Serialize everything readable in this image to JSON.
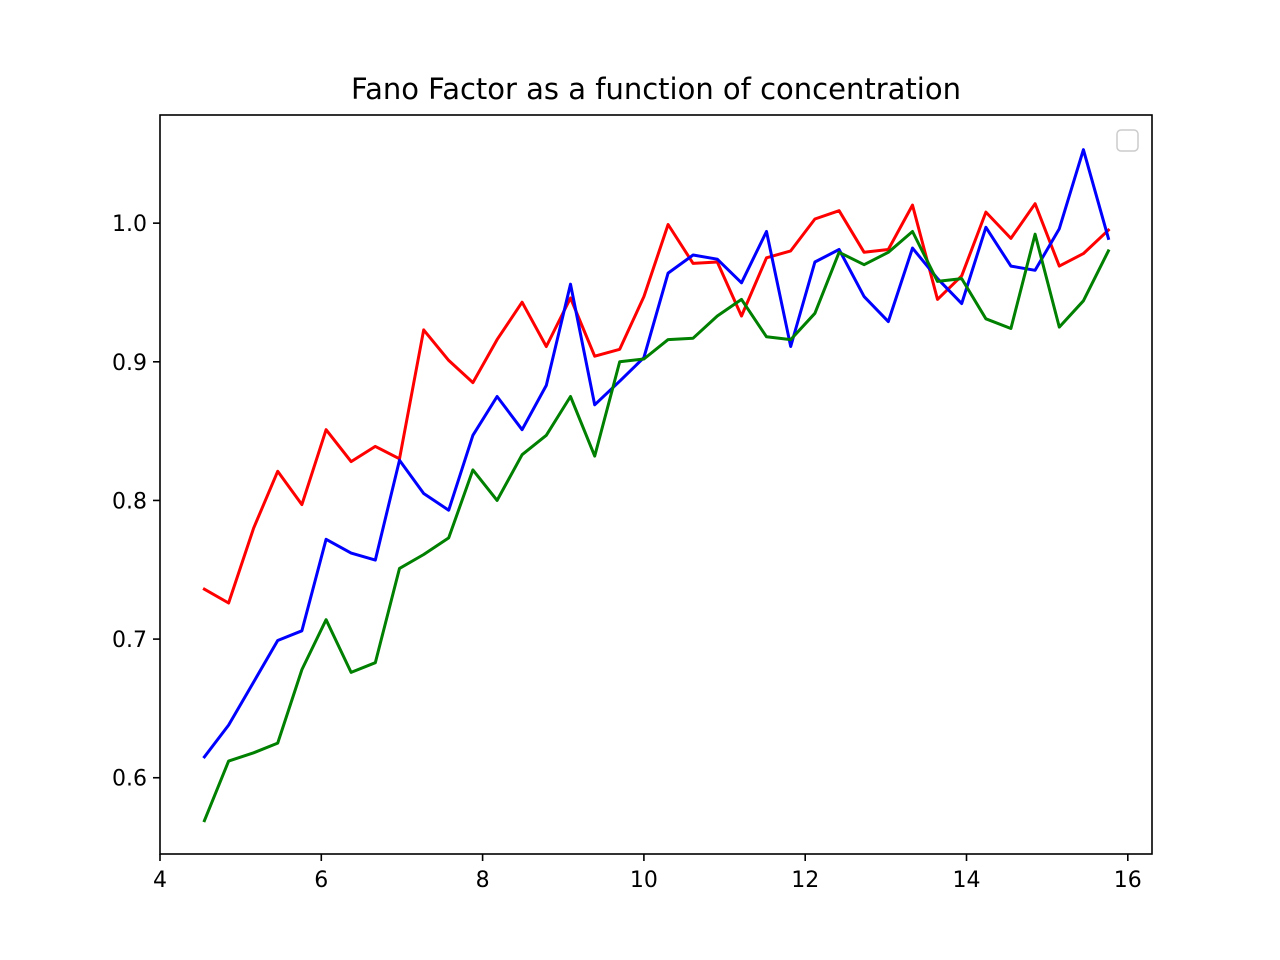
{
  "chart_data": {
    "type": "line",
    "title": "Fano Factor as a function of concentration",
    "xlabel": "",
    "ylabel": "",
    "xlim": [
      4.0,
      16.3
    ],
    "ylim": [
      0.545,
      1.078
    ],
    "xticks": [
      4,
      6,
      8,
      10,
      12,
      14,
      16
    ],
    "xtick_labels": [
      "4",
      "6",
      "8",
      "10",
      "12",
      "14",
      "16"
    ],
    "yticks": [
      0.6,
      0.7,
      0.8,
      0.9,
      1.0
    ],
    "ytick_labels": [
      "0.6",
      "0.7",
      "0.8",
      "0.9",
      "1.0"
    ],
    "grid": false,
    "legend": {
      "placement": "top-right",
      "entries": []
    },
    "x": [
      4.55,
      4.85,
      5.16,
      5.46,
      5.76,
      6.06,
      6.37,
      6.67,
      6.97,
      7.27,
      7.58,
      7.88,
      8.18,
      8.49,
      8.79,
      9.09,
      9.39,
      9.7,
      10.0,
      10.3,
      10.61,
      10.91,
      11.21,
      11.52,
      11.82,
      12.12,
      12.42,
      12.73,
      13.03,
      13.33,
      13.64,
      13.94,
      14.24,
      14.55,
      14.85,
      15.15,
      15.45,
      15.76
    ],
    "series": [
      {
        "color": "#ff0000",
        "values": [
          0.736,
          0.726,
          0.78,
          0.821,
          0.797,
          0.851,
          0.828,
          0.839,
          0.83,
          0.923,
          0.901,
          0.885,
          0.916,
          0.943,
          0.911,
          0.946,
          0.904,
          0.909,
          0.947,
          0.999,
          0.971,
          0.972,
          0.933,
          0.975,
          0.98,
          1.003,
          1.009,
          0.979,
          0.981,
          1.013,
          0.945,
          0.962,
          1.008,
          0.989,
          1.014,
          0.969,
          0.978,
          0.995
        ]
      },
      {
        "color": "#0000ff",
        "values": [
          0.615,
          0.638,
          0.669,
          0.699,
          0.706,
          0.772,
          0.762,
          0.757,
          0.829,
          0.805,
          0.793,
          0.847,
          0.875,
          0.851,
          0.883,
          0.956,
          0.869,
          0.886,
          0.903,
          0.964,
          0.977,
          0.974,
          0.957,
          0.994,
          0.911,
          0.972,
          0.981,
          0.947,
          0.929,
          0.982,
          0.96,
          0.942,
          0.997,
          0.969,
          0.966,
          0.996,
          1.053,
          0.989
        ]
      },
      {
        "color": "#008000",
        "values": [
          0.569,
          0.612,
          0.618,
          0.625,
          0.678,
          0.714,
          0.676,
          0.683,
          0.751,
          0.761,
          0.773,
          0.822,
          0.8,
          0.833,
          0.847,
          0.875,
          0.832,
          0.9,
          0.902,
          0.916,
          0.917,
          0.933,
          0.945,
          0.918,
          0.916,
          0.935,
          0.979,
          0.97,
          0.979,
          0.994,
          0.958,
          0.96,
          0.931,
          0.924,
          0.992,
          0.925,
          0.944,
          0.98
        ]
      }
    ]
  }
}
